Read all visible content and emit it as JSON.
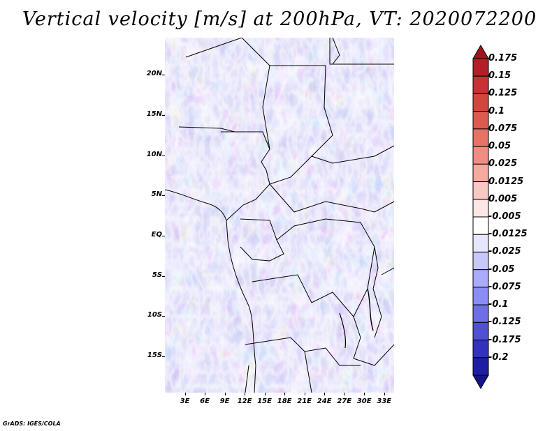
{
  "title": "Vertical velocity [m/s] at 200hPa, VT: 2020072200",
  "credit": "GrADS: IGES/COLA",
  "map": {
    "lat_labels": [
      "20N",
      "15N",
      "10N",
      "5N",
      "EQ",
      "5S",
      "10S",
      "15S"
    ],
    "lat_values": [
      20,
      15,
      10,
      5,
      0,
      -5,
      -10,
      -15
    ],
    "lon_labels": [
      "3E",
      "6E",
      "9E",
      "12E",
      "15E",
      "18E",
      "21E",
      "24E",
      "27E",
      "30E",
      "33E"
    ],
    "lon_values": [
      3,
      6,
      9,
      12,
      15,
      18,
      21,
      24,
      27,
      30,
      33
    ],
    "lon_range": [
      0,
      34.5
    ],
    "lat_range": [
      -19.5,
      24.6
    ]
  },
  "colorbar": {
    "labels": [
      "0.175",
      "0.15",
      "0.125",
      "0.1",
      "0.075",
      "0.05",
      "0.025",
      "0.0125",
      "0.005",
      "-0.005",
      "-0.0125",
      "-0.025",
      "-0.05",
      "-0.075",
      "-0.1",
      "-0.125",
      "-0.175",
      "-0.2"
    ],
    "colors": [
      "#a0141e",
      "#b41e28",
      "#c83232",
      "#d2463c",
      "#dc5a50",
      "#e67364",
      "#f08c82",
      "#f5aaa0",
      "#fac8c3",
      "#ffe6e6",
      "#ffffff",
      "#e6e6ff",
      "#c8c8ff",
      "#aaaaff",
      "#8c8cf5",
      "#6e6ee6",
      "#5050d2",
      "#3232be",
      "#1e1ea5",
      "#14148c"
    ]
  }
}
